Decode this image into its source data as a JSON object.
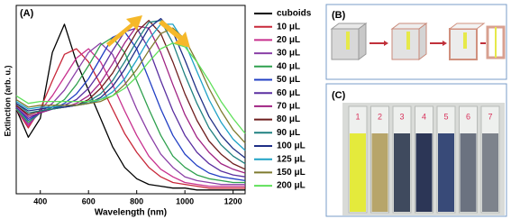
{
  "chart_data": {
    "type": "line",
    "panel_label": "(A)",
    "x_label": "Wavelength (nm)",
    "y_label": "Extinction (arb. u.)",
    "x": [
      300,
      350,
      400,
      450,
      500,
      550,
      600,
      650,
      700,
      750,
      800,
      850,
      900,
      950,
      1000,
      1050,
      1100,
      1150,
      1200,
      1250
    ],
    "xlim": [
      300,
      1250
    ],
    "xticks": [
      400,
      600,
      800,
      1000,
      1200
    ],
    "ylim": [
      0,
      1
    ],
    "legend_position": "outside-right",
    "series": [
      {
        "name": "cuboids",
        "color": "#000000",
        "values": [
          0.45,
          0.3,
          0.4,
          0.75,
          0.9,
          0.7,
          0.55,
          0.4,
          0.25,
          0.14,
          0.08,
          0.05,
          0.04,
          0.03,
          0.03,
          0.02,
          0.02,
          0.02,
          0.02,
          0.02
        ]
      },
      {
        "name": "10 μL",
        "color": "#c8283a",
        "values": [
          0.45,
          0.35,
          0.45,
          0.6,
          0.74,
          0.77,
          0.7,
          0.58,
          0.45,
          0.32,
          0.22,
          0.14,
          0.09,
          0.06,
          0.05,
          0.04,
          0.03,
          0.03,
          0.03,
          0.03
        ]
      },
      {
        "name": "20 μL",
        "color": "#c8308e",
        "values": [
          0.45,
          0.36,
          0.44,
          0.52,
          0.62,
          0.72,
          0.77,
          0.7,
          0.58,
          0.44,
          0.31,
          0.2,
          0.13,
          0.09,
          0.06,
          0.05,
          0.04,
          0.04,
          0.04,
          0.04
        ]
      },
      {
        "name": "30 μL",
        "color": "#8a3fa6",
        "values": [
          0.45,
          0.37,
          0.43,
          0.48,
          0.55,
          0.65,
          0.75,
          0.8,
          0.74,
          0.6,
          0.45,
          0.32,
          0.21,
          0.14,
          0.09,
          0.07,
          0.06,
          0.05,
          0.05,
          0.05
        ]
      },
      {
        "name": "40 μL",
        "color": "#2fa04e",
        "values": [
          0.45,
          0.38,
          0.43,
          0.46,
          0.5,
          0.58,
          0.68,
          0.79,
          0.83,
          0.75,
          0.6,
          0.45,
          0.31,
          0.2,
          0.14,
          0.1,
          0.08,
          0.07,
          0.06,
          0.06
        ]
      },
      {
        "name": "50 μL",
        "color": "#2340c4",
        "values": [
          0.46,
          0.39,
          0.43,
          0.45,
          0.48,
          0.53,
          0.61,
          0.72,
          0.83,
          0.86,
          0.77,
          0.61,
          0.45,
          0.31,
          0.21,
          0.15,
          0.11,
          0.09,
          0.08,
          0.07
        ]
      },
      {
        "name": "60 μL",
        "color": "#5a2fa0",
        "values": [
          0.46,
          0.4,
          0.43,
          0.45,
          0.47,
          0.5,
          0.56,
          0.65,
          0.76,
          0.86,
          0.88,
          0.77,
          0.6,
          0.44,
          0.31,
          0.22,
          0.16,
          0.12,
          0.1,
          0.09
        ]
      },
      {
        "name": "70 μL",
        "color": "#a02383",
        "values": [
          0.47,
          0.41,
          0.43,
          0.45,
          0.46,
          0.48,
          0.52,
          0.59,
          0.69,
          0.8,
          0.89,
          0.88,
          0.75,
          0.58,
          0.42,
          0.3,
          0.22,
          0.16,
          0.13,
          0.11
        ]
      },
      {
        "name": "80 μL",
        "color": "#6e1e1e",
        "values": [
          0.47,
          0.42,
          0.44,
          0.45,
          0.46,
          0.47,
          0.5,
          0.56,
          0.64,
          0.75,
          0.86,
          0.92,
          0.85,
          0.7,
          0.53,
          0.39,
          0.28,
          0.21,
          0.16,
          0.13
        ]
      },
      {
        "name": "90 μL",
        "color": "#1f8080",
        "values": [
          0.48,
          0.43,
          0.44,
          0.45,
          0.46,
          0.47,
          0.49,
          0.53,
          0.6,
          0.7,
          0.81,
          0.91,
          0.92,
          0.8,
          0.63,
          0.48,
          0.35,
          0.26,
          0.2,
          0.16
        ]
      },
      {
        "name": "100 μL",
        "color": "#1f2f86",
        "values": [
          0.48,
          0.44,
          0.45,
          0.46,
          0.46,
          0.47,
          0.48,
          0.51,
          0.57,
          0.66,
          0.77,
          0.88,
          0.93,
          0.86,
          0.71,
          0.55,
          0.41,
          0.31,
          0.24,
          0.19
        ]
      },
      {
        "name": "125 μL",
        "color": "#1fa2c6",
        "values": [
          0.49,
          0.45,
          0.46,
          0.46,
          0.47,
          0.47,
          0.48,
          0.5,
          0.54,
          0.61,
          0.71,
          0.82,
          0.9,
          0.9,
          0.8,
          0.65,
          0.5,
          0.38,
          0.29,
          0.23
        ]
      },
      {
        "name": "150 μL",
        "color": "#7e7a2e",
        "values": [
          0.5,
          0.46,
          0.47,
          0.47,
          0.47,
          0.47,
          0.48,
          0.49,
          0.52,
          0.58,
          0.66,
          0.76,
          0.85,
          0.88,
          0.82,
          0.7,
          0.56,
          0.44,
          0.34,
          0.27
        ]
      },
      {
        "name": "200 μL",
        "color": "#5fe05a",
        "values": [
          0.52,
          0.48,
          0.49,
          0.49,
          0.49,
          0.49,
          0.49,
          0.5,
          0.52,
          0.56,
          0.62,
          0.7,
          0.77,
          0.8,
          0.78,
          0.7,
          0.6,
          0.49,
          0.4,
          0.32
        ]
      }
    ]
  },
  "panels": {
    "b": {
      "label": "(B)"
    },
    "c": {
      "label": "(C)",
      "vials": [
        "1",
        "2",
        "3",
        "4",
        "5",
        "6",
        "7"
      ]
    }
  }
}
